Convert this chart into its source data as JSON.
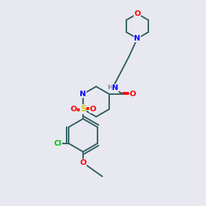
{
  "bg_color": "#e8e8f0",
  "bond_color": "#2f6060",
  "bond_width": 1.5,
  "atom_colors": {
    "N": "#0000ff",
    "O": "#ff0000",
    "S": "#cccc00",
    "Cl": "#00bb00",
    "H": "#888888"
  },
  "font_size": 7.5
}
